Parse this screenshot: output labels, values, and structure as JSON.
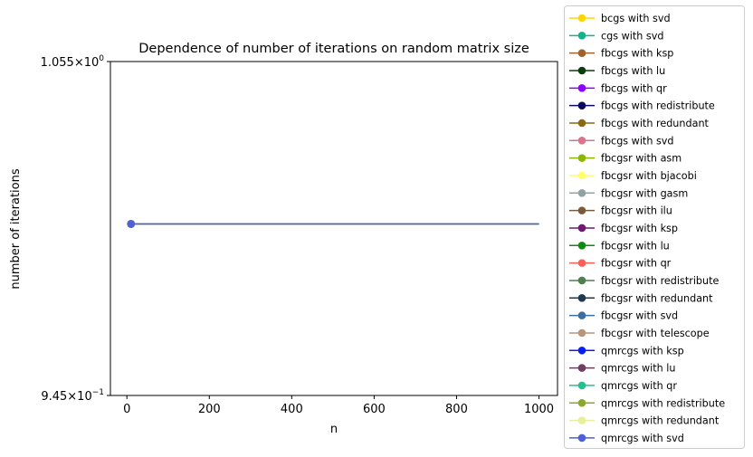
{
  "chart_data": {
    "type": "line",
    "title": "Dependence of number of iterations on random matrix size",
    "xlabel": "n",
    "ylabel": "number of iterations",
    "xlim": [
      -40,
      1045
    ],
    "ylim": [
      0.945,
      1.055
    ],
    "yscale": "log",
    "x_ticks": [
      0,
      200,
      400,
      600,
      800,
      1000
    ],
    "x_tick_labels": [
      "0",
      "200",
      "400",
      "600",
      "800",
      "1000"
    ],
    "y_ticks": [
      {
        "value": 1.055,
        "mantissa": "1.055",
        "exponent": "0"
      },
      {
        "value": 0.945,
        "mantissa": "9.45",
        "exponent": "−1"
      }
    ],
    "grid": false,
    "legend_position": "outside-right",
    "x": [
      10,
      1000
    ],
    "series": [
      {
        "name": "bcgs with svd",
        "color": "#ffd700",
        "values": [
          1,
          1
        ]
      },
      {
        "name": "cgs with svd",
        "color": "#10b38b",
        "values": [
          1,
          1
        ]
      },
      {
        "name": "fbcgs with ksp",
        "color": "#a0622d",
        "values": [
          1,
          1
        ]
      },
      {
        "name": "fbcgs with lu",
        "color": "#0b3d0b",
        "values": [
          1,
          1
        ]
      },
      {
        "name": "fbcgs with qr",
        "color": "#8f00ff",
        "values": [
          1,
          1
        ]
      },
      {
        "name": "fbcgs with redistribute",
        "color": "#0a0a60",
        "values": [
          1,
          1
        ]
      },
      {
        "name": "fbcgs with redundant",
        "color": "#8b6914",
        "values": [
          1,
          1
        ]
      },
      {
        "name": "fbcgs with svd",
        "color": "#d9748a",
        "values": [
          1,
          1
        ]
      },
      {
        "name": "fbcgsr with asm",
        "color": "#8db600",
        "values": [
          1,
          1
        ]
      },
      {
        "name": "fbcgsr with bjacobi",
        "color": "#ffff66",
        "values": [
          1,
          1
        ]
      },
      {
        "name": "fbcgsr with gasm",
        "color": "#8fa3a3",
        "values": [
          1,
          1
        ]
      },
      {
        "name": "fbcgsr with ilu",
        "color": "#7b5a3c",
        "values": [
          1,
          1
        ]
      },
      {
        "name": "fbcgsr with ksp",
        "color": "#6e1a6e",
        "values": [
          1,
          1
        ]
      },
      {
        "name": "fbcgsr with lu",
        "color": "#118a11",
        "values": [
          1,
          1
        ]
      },
      {
        "name": "fbcgsr with qr",
        "color": "#ff5e57",
        "values": [
          1,
          1
        ]
      },
      {
        "name": "fbcgsr with redistribute",
        "color": "#4f7f4f",
        "values": [
          1,
          1
        ]
      },
      {
        "name": "fbcgsr with redundant",
        "color": "#1f3a50",
        "values": [
          1,
          1
        ]
      },
      {
        "name": "fbcgsr with svd",
        "color": "#3a6fa0",
        "values": [
          1,
          1
        ]
      },
      {
        "name": "fbcgsr with telescope",
        "color": "#b8967a",
        "values": [
          1,
          1
        ]
      },
      {
        "name": "qmrcgs with ksp",
        "color": "#0b1ef0",
        "values": [
          1,
          1
        ]
      },
      {
        "name": "qmrcgs with lu",
        "color": "#6e4060",
        "values": [
          1,
          1
        ]
      },
      {
        "name": "qmrcgs with qr",
        "color": "#25c08f",
        "values": [
          1,
          1
        ]
      },
      {
        "name": "qmrcgs with redistribute",
        "color": "#8aa82b",
        "values": [
          1,
          1
        ]
      },
      {
        "name": "qmrcgs with redundant",
        "color": "#e8ee9a",
        "values": [
          1,
          1
        ]
      },
      {
        "name": "qmrcgs with svd",
        "color": "#4e5fd8",
        "values": [
          1,
          1
        ]
      }
    ]
  }
}
